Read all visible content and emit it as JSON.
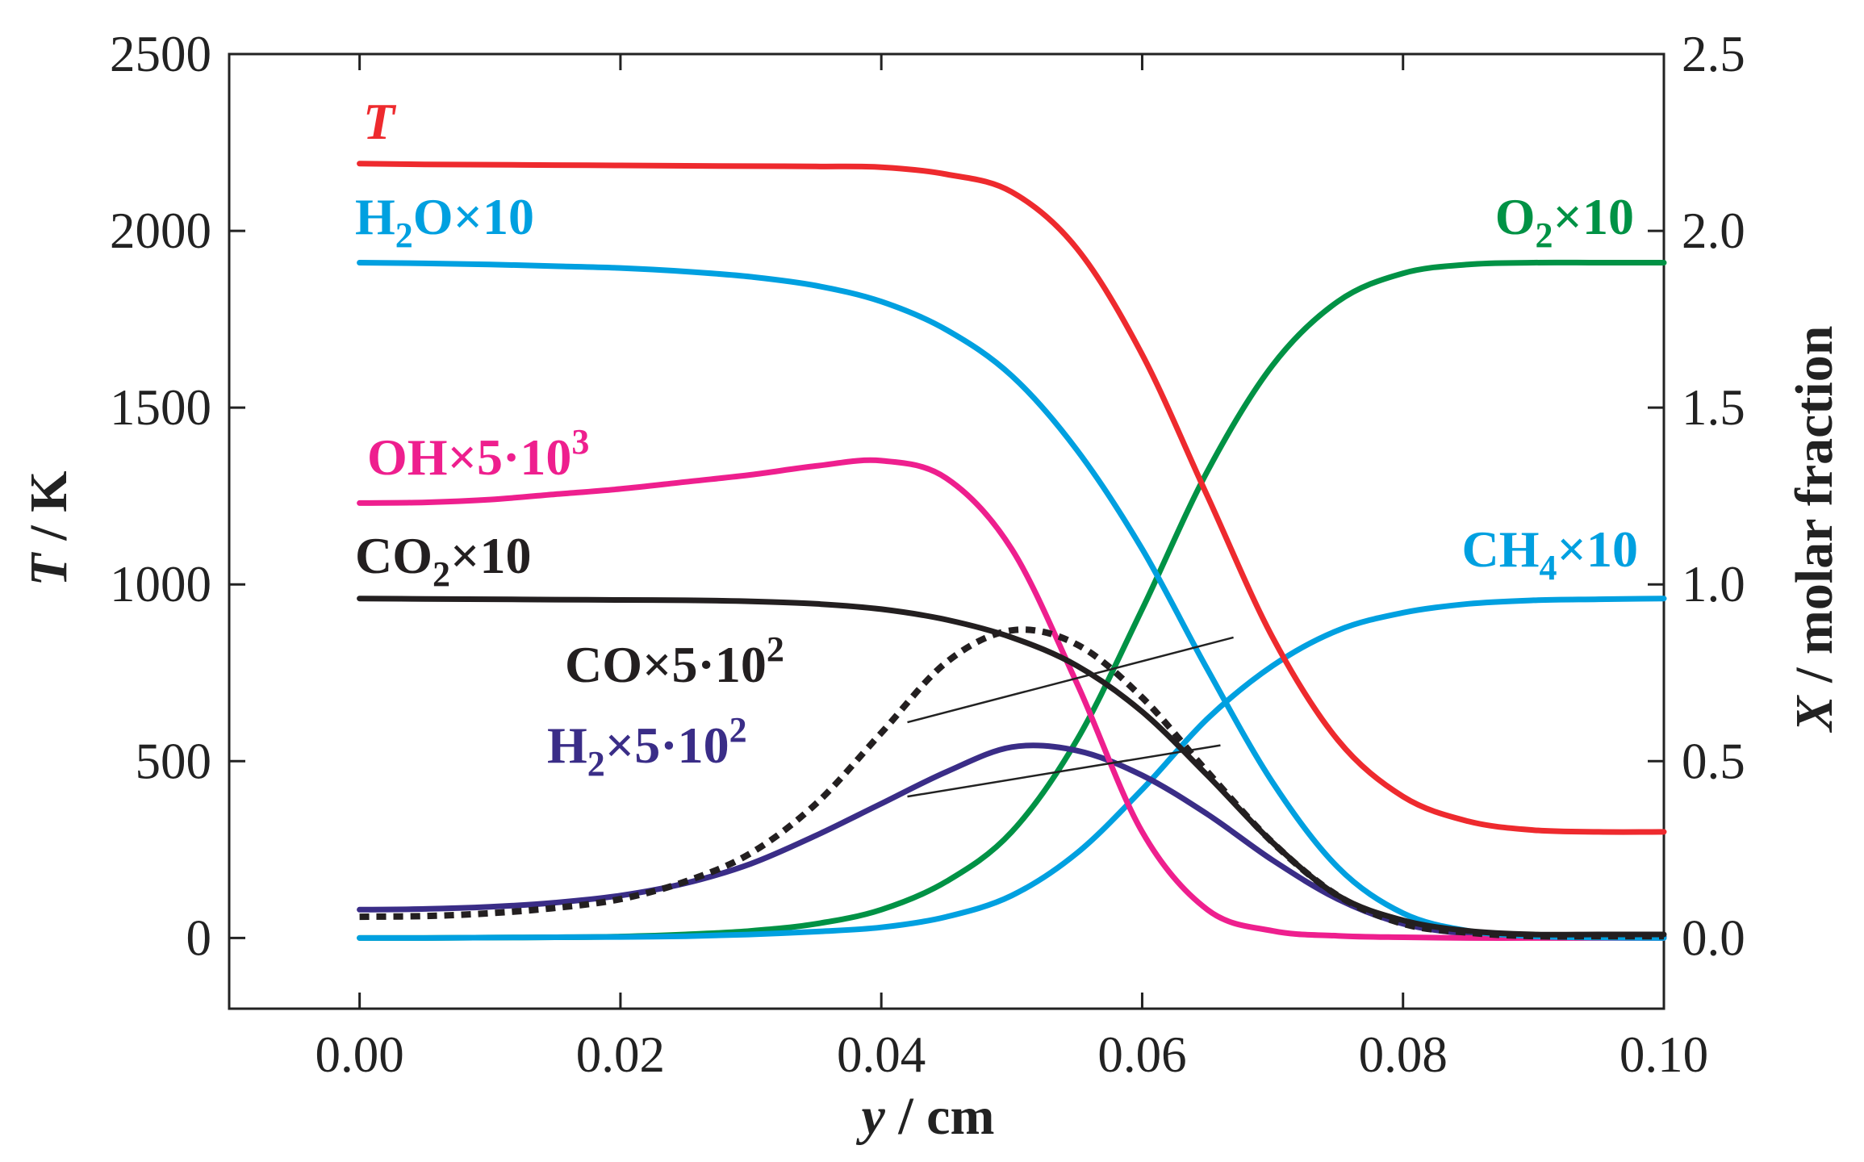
{
  "chart_data": {
    "type": "line",
    "title": "",
    "xlabel": {
      "var": "y",
      "unit": " / cm"
    },
    "ylabel": {
      "var": "T",
      "unit": " / K"
    },
    "y2label": {
      "var": "X",
      "unit": " / molar fraction"
    },
    "xlim": [
      -0.01,
      0.1
    ],
    "ylim": [
      -200,
      2500
    ],
    "y2lim": [
      -0.2,
      2.5
    ],
    "xticks": [
      "0.00",
      "0.02",
      "0.04",
      "0.06",
      "0.08",
      "0.10"
    ],
    "xtick_values": [
      0.0,
      0.02,
      0.04,
      0.06,
      0.08,
      0.1
    ],
    "yticks": [
      "0",
      "500",
      "1000",
      "1500",
      "2000",
      "2500"
    ],
    "ytick_values": [
      0,
      500,
      1000,
      1500,
      2000,
      2500
    ],
    "y2ticks": [
      "0.0",
      "0.5",
      "1.0",
      "1.5",
      "2.0",
      "2.5"
    ],
    "y2tick_values": [
      0.0,
      0.5,
      1.0,
      1.5,
      2.0,
      2.5
    ],
    "grid": false,
    "legend": "inline labels",
    "x": [
      0.0,
      0.005,
      0.01,
      0.015,
      0.02,
      0.025,
      0.03,
      0.035,
      0.04,
      0.045,
      0.05,
      0.055,
      0.06,
      0.065,
      0.07,
      0.075,
      0.08,
      0.085,
      0.09,
      0.095,
      0.1
    ],
    "series": [
      {
        "id": "T",
        "name": "T",
        "color": "#ee2a2e",
        "dash": "none",
        "width": 7,
        "values": [
          2190,
          2188,
          2187,
          2186,
          2185,
          2184,
          2183,
          2182,
          2180,
          2160,
          2110,
          1950,
          1650,
          1250,
          850,
          560,
          400,
          330,
          305,
          300,
          300
        ]
      },
      {
        "id": "H2O",
        "name": "H₂O×10",
        "color": "#00a0e0",
        "dash": "none",
        "width": 7,
        "values": [
          1910,
          1908,
          1905,
          1900,
          1895,
          1885,
          1870,
          1845,
          1800,
          1720,
          1590,
          1380,
          1100,
          760,
          440,
          200,
          70,
          20,
          5,
          1,
          0
        ]
      },
      {
        "id": "OH",
        "name": "OH×5·10³",
        "color": "#ee1f8e",
        "dash": "none",
        "width": 7,
        "values": [
          1230,
          1232,
          1240,
          1255,
          1270,
          1290,
          1310,
          1335,
          1350,
          1300,
          1100,
          720,
          300,
          80,
          20,
          6,
          2,
          0,
          0,
          0,
          0
        ]
      },
      {
        "id": "CO2",
        "name": "CO₂×10",
        "color": "#231f20",
        "dash": "none",
        "width": 7,
        "values": [
          960,
          959,
          958,
          957,
          956,
          955,
          952,
          945,
          930,
          900,
          850,
          770,
          640,
          460,
          270,
          120,
          50,
          20,
          10,
          10,
          10
        ]
      },
      {
        "id": "CO",
        "name": "CO×5·10²",
        "color": "#231f20",
        "dash": "12 9",
        "width": 8,
        "values": [
          60,
          62,
          70,
          85,
          110,
          160,
          240,
          380,
          580,
          780,
          870,
          830,
          680,
          470,
          270,
          120,
          40,
          15,
          5,
          5,
          5
        ]
      },
      {
        "id": "H2",
        "name": "H₂×5·10²",
        "color": "#3a2d87",
        "dash": "none",
        "width": 7,
        "values": [
          80,
          82,
          88,
          100,
          120,
          155,
          210,
          290,
          380,
          470,
          540,
          530,
          460,
          350,
          220,
          110,
          40,
          12,
          5,
          3,
          3
        ]
      },
      {
        "id": "O2",
        "name": "O₂×10",
        "color": "#009245",
        "dash": "none",
        "width": 7,
        "values": [
          0,
          0,
          1,
          2,
          4,
          10,
          20,
          40,
          80,
          160,
          300,
          560,
          930,
          1320,
          1620,
          1800,
          1880,
          1905,
          1910,
          1910,
          1910
        ]
      },
      {
        "id": "CH4",
        "name": "CH₄×10",
        "color": "#00a0e0",
        "dash": "none",
        "width": 7,
        "values": [
          0,
          0,
          1,
          2,
          3,
          5,
          10,
          18,
          30,
          60,
          120,
          240,
          420,
          620,
          770,
          870,
          920,
          945,
          955,
          958,
          960
        ]
      }
    ],
    "labels": [
      {
        "id": "label-T",
        "series": "T",
        "base": "T",
        "sub": "",
        "tail": "",
        "sup": "",
        "italic": true,
        "color": "#ee2a2e"
      },
      {
        "id": "label-H2O",
        "series": "H2O",
        "base": "H",
        "sub": "2",
        "tail": "O×10",
        "sup": "",
        "italic": false,
        "color": "#00a0e0"
      },
      {
        "id": "label-OH",
        "series": "OH",
        "base": "OH×5·10",
        "sub": "",
        "tail": "",
        "sup": "3",
        "italic": false,
        "color": "#ee1f8e"
      },
      {
        "id": "label-CO2",
        "series": "CO2",
        "base": "CO",
        "sub": "2",
        "tail": "×10",
        "sup": "",
        "italic": false,
        "color": "#231f20"
      },
      {
        "id": "label-CO",
        "series": "CO",
        "base": "CO×5·10",
        "sub": "",
        "tail": "",
        "sup": "2",
        "italic": false,
        "color": "#231f20"
      },
      {
        "id": "label-H2",
        "series": "H2",
        "base": "H",
        "sub": "2",
        "tail": "×5·10",
        "sup": "2",
        "italic": false,
        "color": "#3a2d87"
      },
      {
        "id": "label-O2",
        "series": "O2",
        "base": "O",
        "sub": "2",
        "tail": "×10",
        "sup": "",
        "italic": false,
        "color": "#009245"
      },
      {
        "id": "label-CH4",
        "series": "CH4",
        "base": "CH",
        "sub": "4",
        "tail": "×10",
        "sup": "",
        "italic": false,
        "color": "#00a0e0"
      }
    ],
    "leaders": [
      {
        "id": "CO",
        "x1": 0.067,
        "y1": 850,
        "x2": 0.042,
        "y2": 610
      },
      {
        "id": "H2",
        "x1": 0.066,
        "y1": 545,
        "x2": 0.042,
        "y2": 400
      }
    ]
  }
}
